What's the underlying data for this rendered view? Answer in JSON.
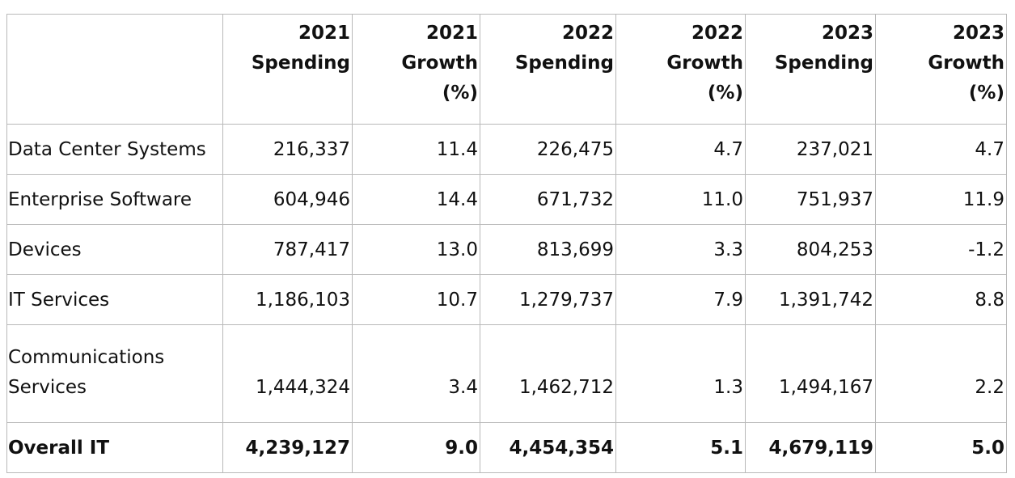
{
  "header": {
    "columns": [
      {
        "line1": "",
        "line2": "",
        "line3": ""
      },
      {
        "line1": "2021",
        "line2": "Spending",
        "line3": ""
      },
      {
        "line1": "2021",
        "line2": "Growth",
        "line3": "(%)"
      },
      {
        "line1": "2022",
        "line2": "Spending",
        "line3": ""
      },
      {
        "line1": "2022",
        "line2": "Growth",
        "line3": "(%)"
      },
      {
        "line1": "2023",
        "line2": "Spending",
        "line3": ""
      },
      {
        "line1": "2023",
        "line2": "Growth",
        "line3": "(%)"
      }
    ]
  },
  "rows": [
    {
      "label": "Data Center Systems",
      "cells": [
        "216,337",
        "11.4",
        "226,475",
        "4.7",
        "237,021",
        "4.7"
      ]
    },
    {
      "label": "Enterprise Software",
      "cells": [
        "604,946",
        "14.4",
        "671,732",
        "11.0",
        "751,937",
        "11.9"
      ]
    },
    {
      "label": "Devices",
      "cells": [
        "787,417",
        "13.0",
        "813,699",
        "3.3",
        "804,253",
        "-1.2"
      ]
    },
    {
      "label": "IT Services",
      "cells": [
        "1,186,103",
        "10.7",
        "1,279,737",
        "7.9",
        "1,391,742",
        "8.8"
      ]
    },
    {
      "label": "Communications Services",
      "cells": [
        "1,444,324",
        "3.4",
        "1,462,712",
        "1.3",
        "1,494,167",
        "2.2"
      ]
    },
    {
      "label": "Overall IT",
      "cells": [
        "4,239,127",
        "9.0",
        "4,454,354",
        "5.1",
        "4,679,119",
        "5.0"
      ]
    }
  ]
}
